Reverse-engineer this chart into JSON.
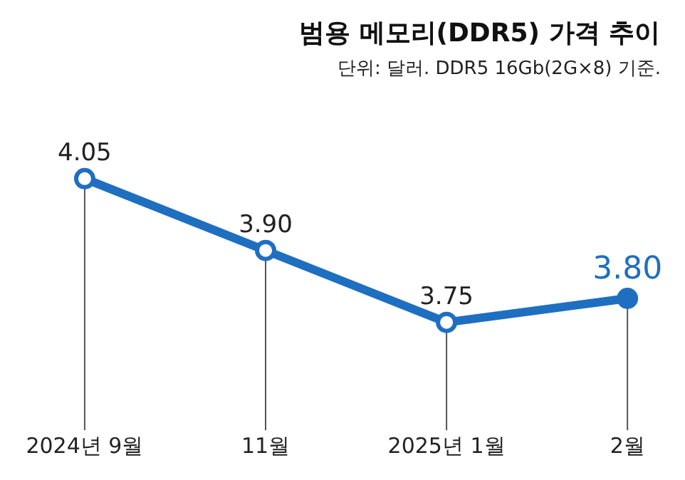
{
  "chart_data": {
    "type": "line",
    "title": "범용 메모리(DDR5) 가격 추이",
    "subtitle": "단위: 달러. DDR5 16Gb(2G×8) 기준.",
    "categories": [
      "2024년 9월",
      "11월",
      "2025년 1월",
      "2월"
    ],
    "series": [
      {
        "color": "#1f6fc0",
        "values": [
          4.05,
          3.9,
          3.75,
          3.8
        ],
        "value_labels": [
          "4.05",
          "3.90",
          "3.75",
          "3.80"
        ]
      }
    ],
    "marker": "circle",
    "grid": "x",
    "tick_labels": "x",
    "line_style": "solid"
  }
}
